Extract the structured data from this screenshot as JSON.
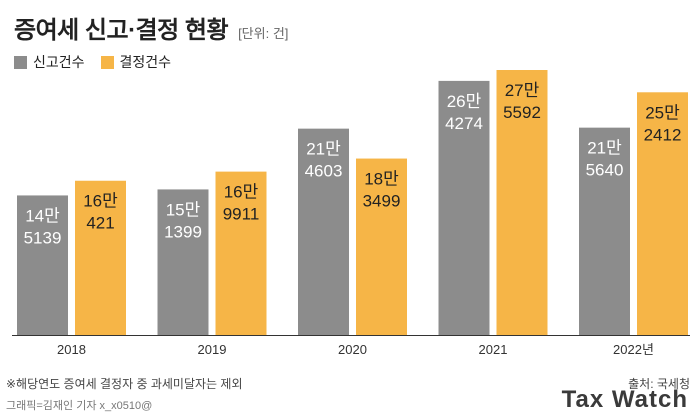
{
  "header": {
    "title": "증여세 신고·결정 현황",
    "unit": "[단위: 건]"
  },
  "legend": {
    "items": [
      {
        "label": "신고건수",
        "color": "#8c8c8c"
      },
      {
        "label": "결정건수",
        "color": "#f6b547"
      }
    ]
  },
  "chart_data": {
    "type": "bar",
    "categories": [
      "2018",
      "2019",
      "2020",
      "2021",
      "2022년"
    ],
    "series": [
      {
        "name": "신고건수",
        "values": [
          145139,
          151399,
          214603,
          264274,
          215640
        ],
        "labels": [
          [
            "14만",
            "5139"
          ],
          [
            "15만",
            "1399"
          ],
          [
            "21만",
            "4603"
          ],
          [
            "26만",
            "4274"
          ],
          [
            "21만",
            "5640"
          ]
        ]
      },
      {
        "name": "결정건수",
        "values": [
          160421,
          169911,
          183499,
          275592,
          252412
        ],
        "labels": [
          [
            "16만",
            "421"
          ],
          [
            "16만",
            "9911"
          ],
          [
            "18만",
            "3499"
          ],
          [
            "27만",
            "5592"
          ],
          [
            "25만",
            "2412"
          ]
        ]
      }
    ],
    "colors": [
      "#8c8c8c",
      "#f6b547"
    ],
    "grid": false,
    "legend_position": "top-left"
  },
  "footer": {
    "footnote": "※해당연도 증여세 결정자 중 과세미달자는 제외",
    "source": "출처: 국세청",
    "credit": "그래픽=김재인 기자 x_x0510@",
    "brand": "Tax Watch"
  }
}
